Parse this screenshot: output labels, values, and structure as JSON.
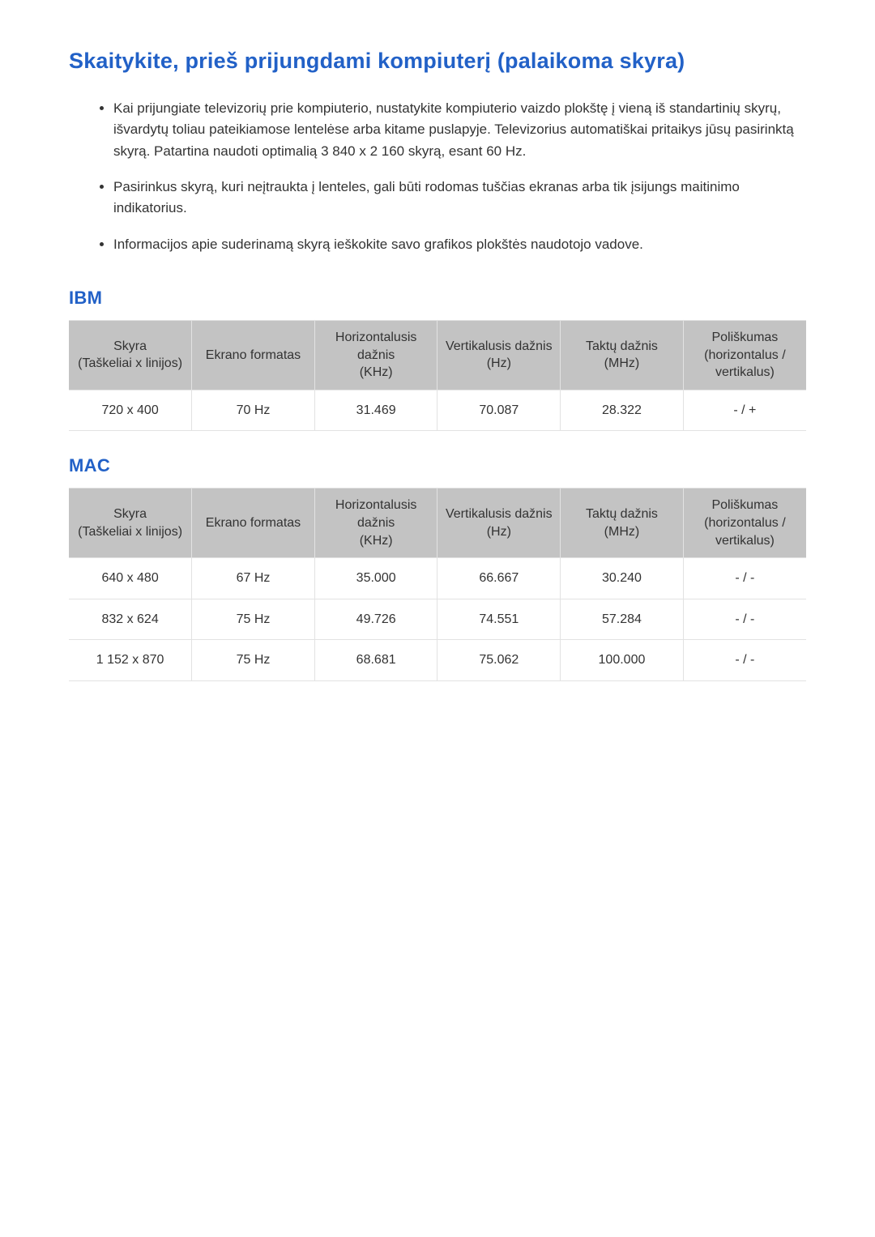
{
  "title": "Skaitykite, prieš prijungdami kompiuterį (palaikoma skyra)",
  "bullets": [
    "Kai prijungiate televizorių prie kompiuterio, nustatykite kompiuterio vaizdo plokštę į vieną iš standartinių skyrų, išvardytų toliau pateikiamose lentelėse arba kitame puslapyje. Televizorius automatiškai pritaikys jūsų pasirinktą skyrą. Patartina naudoti optimalią 3 840 x 2 160 skyrą, esant 60 Hz.",
    "Pasirinkus skyrą, kuri neįtraukta į lenteles, gali būti rodomas tuščias ekranas arba tik įsijungs maitinimo indikatorius.",
    "Informacijos apie suderinamą skyrą ieškokite savo grafikos plokštės naudotojo vadove."
  ],
  "sections": [
    {
      "heading": "IBM",
      "table": {
        "columns": [
          "Skyra\n(Taškeliai x linijos)",
          "Ekrano formatas",
          "Horizontalusis dažnis\n(KHz)",
          "Vertikalusis dažnis\n(Hz)",
          "Taktų dažnis\n(MHz)",
          "Poliškumas\n(horizontalus / vertikalus)"
        ],
        "rows": [
          [
            "720 x 400",
            "70 Hz",
            "31.469",
            "70.087",
            "28.322",
            "- / +"
          ]
        ],
        "header_bg": "#c3c3c3",
        "border_color": "#e2e2e2",
        "fontsize": 16
      }
    },
    {
      "heading": "MAC",
      "table": {
        "columns": [
          "Skyra\n(Taškeliai x linijos)",
          "Ekrano formatas",
          "Horizontalusis dažnis\n(KHz)",
          "Vertikalusis dažnis\n(Hz)",
          "Taktų dažnis\n(MHz)",
          "Poliškumas\n(horizontalus / vertikalus)"
        ],
        "rows": [
          [
            "640 x 480",
            "67 Hz",
            "35.000",
            "66.667",
            "30.240",
            "- / -"
          ],
          [
            "832 x 624",
            "75 Hz",
            "49.726",
            "74.551",
            "57.284",
            "- / -"
          ],
          [
            "1 152 x 870",
            "75 Hz",
            "68.681",
            "75.062",
            "100.000",
            "- / -"
          ]
        ],
        "header_bg": "#c3c3c3",
        "border_color": "#e2e2e2",
        "fontsize": 16
      }
    }
  ],
  "colors": {
    "heading": "#2261c7",
    "text": "#333333",
    "background": "#ffffff"
  }
}
